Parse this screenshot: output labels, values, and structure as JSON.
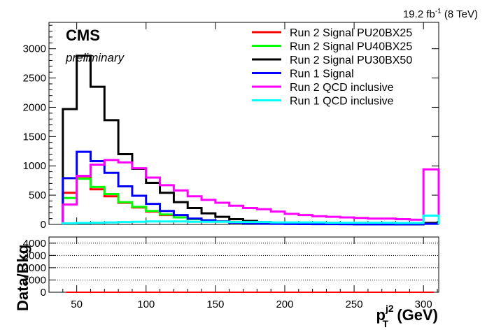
{
  "lumi_label": {
    "base": "19.2 fb",
    "sup": "-1",
    "tail": " (8 TeV)"
  },
  "cms_label": "CMS",
  "preliminary_label": "preliminary",
  "x_axis_label": {
    "base": "p",
    "sup": "j2",
    "sub": "T",
    "tail": " (GeV)"
  },
  "ratio_y_label": "Data/Bkg",
  "chart_data": [
    {
      "type": "line",
      "style": "step histogram",
      "xlim": [
        30,
        311
      ],
      "ylim": [
        0,
        3450
      ],
      "x_ticks": [
        50,
        100,
        150,
        200,
        250,
        300
      ],
      "y_ticks": [
        0,
        500,
        1000,
        1500,
        2000,
        2500,
        3000
      ],
      "legend_position": "top-right",
      "grid": false,
      "series": [
        {
          "name": "Run 2 Signal PU20BX25",
          "color": "#ff0000",
          "edges": [
            40,
            50,
            60,
            70,
            80,
            90,
            100,
            110,
            120,
            130,
            140,
            150,
            160,
            170,
            180,
            190,
            200,
            210,
            220,
            230,
            240,
            250,
            260,
            270,
            280,
            290,
            300,
            311
          ],
          "values": [
            540,
            820,
            600,
            480,
            370,
            290,
            220,
            160,
            120,
            90,
            70,
            50,
            40,
            30,
            25,
            20,
            15,
            12,
            10,
            8,
            6,
            5,
            4,
            3,
            3,
            2,
            20
          ]
        },
        {
          "name": "Run 2 Signal PU40BX25",
          "color": "#00ff00",
          "edges": [
            40,
            50,
            60,
            70,
            80,
            90,
            100,
            110,
            120,
            130,
            140,
            150,
            160,
            170,
            180,
            190,
            200,
            210,
            220,
            230,
            240,
            250,
            260,
            270,
            280,
            290,
            300,
            311
          ],
          "values": [
            450,
            780,
            640,
            520,
            380,
            300,
            230,
            170,
            120,
            90,
            70,
            50,
            40,
            30,
            25,
            20,
            15,
            12,
            10,
            8,
            6,
            5,
            4,
            3,
            3,
            2,
            20
          ]
        },
        {
          "name": "Run 2 Signal PU30BX50",
          "color": "#000000",
          "edges": [
            40,
            50,
            60,
            70,
            80,
            90,
            100,
            110,
            120,
            130,
            140,
            150,
            160,
            170,
            180,
            190,
            200,
            210,
            220,
            230,
            240,
            250,
            260,
            270,
            280,
            290,
            300,
            311
          ],
          "values": [
            1970,
            2880,
            2350,
            1780,
            1200,
            950,
            710,
            540,
            380,
            280,
            190,
            130,
            90,
            60,
            40,
            30,
            20,
            15,
            12,
            10,
            8,
            6,
            5,
            4,
            3,
            3,
            25
          ]
        },
        {
          "name": "Run 1 Signal",
          "color": "#0000ff",
          "edges": [
            40,
            50,
            60,
            70,
            80,
            90,
            100,
            110,
            120,
            130,
            140,
            150,
            160,
            170,
            180,
            190,
            200,
            210,
            220,
            230,
            240,
            250,
            260,
            270,
            280,
            290,
            300,
            311
          ],
          "values": [
            790,
            1240,
            1080,
            880,
            650,
            490,
            350,
            230,
            160,
            100,
            70,
            50,
            30,
            20,
            15,
            10,
            8,
            6,
            5,
            4,
            3,
            2,
            2,
            1,
            1,
            1,
            10
          ]
        },
        {
          "name": "Run 2 QCD inclusive",
          "color": "#ff00ff",
          "edges": [
            40,
            50,
            60,
            70,
            80,
            90,
            100,
            110,
            120,
            130,
            140,
            150,
            160,
            170,
            180,
            190,
            200,
            210,
            220,
            230,
            240,
            250,
            260,
            270,
            280,
            290,
            300,
            311
          ],
          "values": [
            340,
            830,
            1020,
            1100,
            1060,
            960,
            800,
            670,
            580,
            480,
            420,
            370,
            320,
            280,
            260,
            220,
            180,
            160,
            140,
            130,
            120,
            110,
            100,
            100,
            90,
            80,
            940
          ]
        },
        {
          "name": "Run 1 QCD inclusive",
          "color": "#00ffff",
          "edges": [
            40,
            50,
            60,
            70,
            80,
            90,
            100,
            110,
            120,
            130,
            140,
            150,
            160,
            170,
            180,
            190,
            200,
            210,
            220,
            230,
            240,
            250,
            260,
            270,
            280,
            290,
            300,
            311
          ],
          "values": [
            20,
            25,
            30,
            35,
            40,
            45,
            50,
            50,
            50,
            45,
            45,
            45,
            40,
            40,
            40,
            35,
            35,
            35,
            35,
            30,
            30,
            30,
            30,
            30,
            25,
            25,
            150
          ]
        }
      ]
    },
    {
      "type": "scatter",
      "style": "ratio panel",
      "xlim": [
        30,
        311
      ],
      "ylim": [
        0,
        4500
      ],
      "x_ticks": [
        50,
        100,
        150,
        200,
        250,
        300
      ],
      "y_ticks": [
        0,
        1000,
        2000,
        3000,
        4000
      ],
      "grid": "horizontal dotted",
      "tick_labels": [
        "0",
        "1000",
        "2000",
        "3000",
        "4000"
      ],
      "x": [
        45,
        55,
        65,
        75,
        85,
        95,
        105,
        115,
        125,
        135,
        145,
        155,
        165,
        175,
        185,
        195,
        205,
        215,
        225,
        235,
        245,
        255,
        265,
        275,
        285,
        295,
        305
      ],
      "y": [
        0,
        0,
        0,
        0,
        0,
        0,
        0,
        0,
        0,
        0,
        0,
        0,
        0,
        0,
        0,
        0,
        0,
        0,
        0,
        0,
        0,
        0,
        0,
        0,
        0,
        0,
        0
      ],
      "color": "#ff0000"
    }
  ]
}
